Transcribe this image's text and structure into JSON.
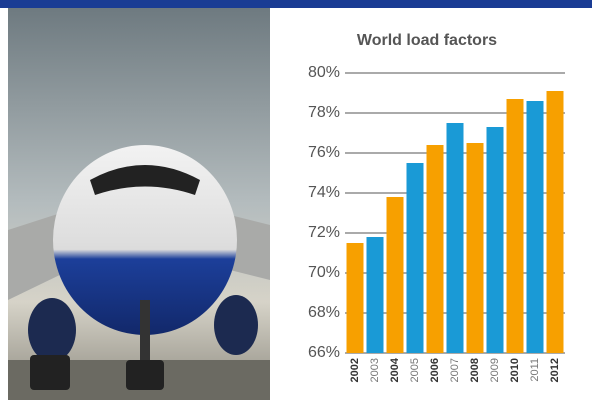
{
  "chart_data": {
    "type": "bar",
    "title": "World load factors",
    "categories": [
      "2002",
      "2003",
      "2004",
      "2005",
      "2006",
      "2007",
      "2008",
      "2009",
      "2010",
      "2011",
      "2012"
    ],
    "values": [
      71.5,
      71.8,
      73.8,
      75.5,
      76.4,
      77.5,
      76.5,
      77.3,
      78.7,
      78.6,
      79.1
    ],
    "colors": [
      "#f7a000",
      "#1a9ad6",
      "#f7a000",
      "#1a9ad6",
      "#f7a000",
      "#1a9ad6",
      "#f7a000",
      "#1a9ad6",
      "#f7a000",
      "#1a9ad6",
      "#f7a000"
    ],
    "ylim": [
      66,
      80
    ],
    "yticks": [
      {
        "value": 66,
        "label": "66%"
      },
      {
        "value": 68,
        "label": "68%"
      },
      {
        "value": 70,
        "label": "70%"
      },
      {
        "value": 72,
        "label": "72%"
      },
      {
        "value": 74,
        "label": "74%"
      },
      {
        "value": 76,
        "label": "76%"
      },
      {
        "value": 78,
        "label": "78%"
      },
      {
        "value": 80,
        "label": "80%"
      }
    ],
    "grid": true
  }
}
